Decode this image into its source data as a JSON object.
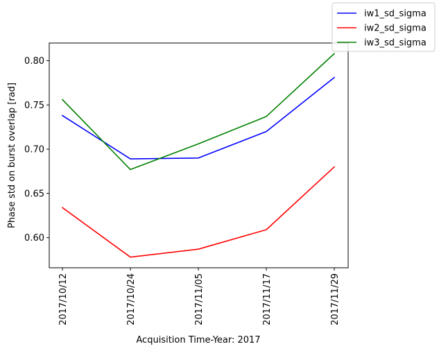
{
  "chart_data": {
    "type": "line",
    "title": "",
    "xlabel": "Acquisition Time-Year: 2017",
    "ylabel": "Phase std on burst overlap [rad]",
    "categories": [
      "2017/10/12",
      "2017/10/24",
      "2017/11/05",
      "2017/11/17",
      "2017/11/29"
    ],
    "yticks": [
      "0.60",
      "0.65",
      "0.70",
      "0.75",
      "0.80"
    ],
    "ylim": [
      0.566,
      0.82
    ],
    "grid": false,
    "legend_position": "top-right",
    "series": [
      {
        "name": "iw1_sd_sigma",
        "color": "#0000ff",
        "values": [
          0.738,
          0.689,
          0.69,
          0.72,
          0.781
        ]
      },
      {
        "name": "iw2_sd_sigma",
        "color": "#ff0000",
        "values": [
          0.634,
          0.578,
          0.587,
          0.609,
          0.68
        ]
      },
      {
        "name": "iw3_sd_sigma",
        "color": "#008000",
        "values": [
          0.756,
          0.677,
          0.706,
          0.737,
          0.808
        ]
      }
    ]
  }
}
